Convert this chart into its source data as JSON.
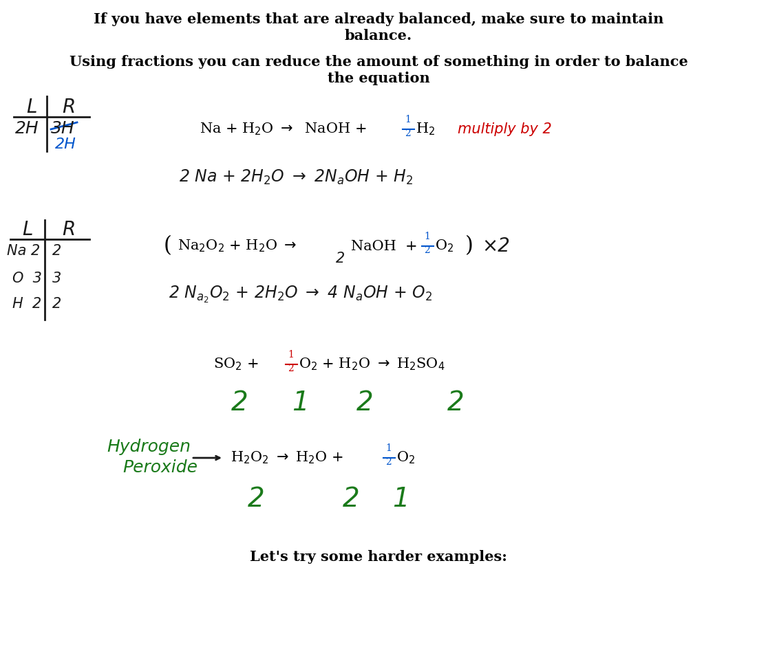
{
  "bg_color": "#ffffff",
  "text_color": "#000000",
  "red_color": "#cc0000",
  "blue_color": "#0055cc",
  "green_color": "#1a7a1a",
  "hc": "#1a1a1a",
  "title1a": "If you have elements that are already balanced, make sure to maintain",
  "title1b": "balance.",
  "title2a": "Using fractions you can reduce the amount of something in order to balance",
  "title2b": "the equation"
}
